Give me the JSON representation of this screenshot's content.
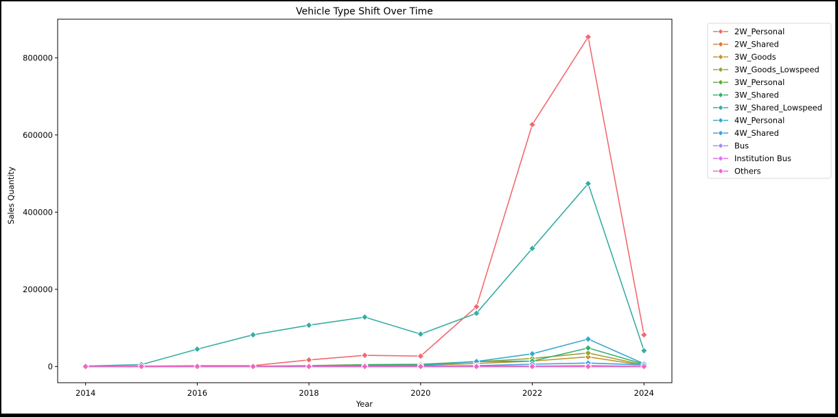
{
  "chart_data": {
    "type": "line",
    "title": "Vehicle Type Shift Over Time",
    "xlabel": "Year",
    "ylabel": "Sales Quantity",
    "xlim": [
      2013.5,
      2024.5
    ],
    "ylim": [
      -42000,
      900000
    ],
    "x_ticks": [
      "2014",
      "2016",
      "2018",
      "2020",
      "2022",
      "2024"
    ],
    "y_ticks": [
      "0",
      "200000",
      "400000",
      "600000",
      "800000"
    ],
    "grid": false,
    "legend_position": "outside-upper-right",
    "x": [
      2014,
      2015,
      2016,
      2017,
      2018,
      2019,
      2020,
      2021,
      2022,
      2023,
      2024
    ],
    "series": [
      {
        "name": "2W_Personal",
        "color": "#f2686e",
        "values": [
          100,
          1000,
          2000,
          2500,
          17000,
          29000,
          27000,
          155000,
          627000,
          854000,
          82000
        ]
      },
      {
        "name": "2W_Shared",
        "color": "#de7932",
        "values": [
          0,
          0,
          0,
          0,
          0,
          0,
          0,
          0,
          100,
          200,
          0
        ]
      },
      {
        "name": "3W_Goods",
        "color": "#c0952f",
        "values": [
          0,
          0,
          0,
          500,
          1500,
          3000,
          3000,
          8000,
          14000,
          25000,
          3000
        ]
      },
      {
        "name": "3W_Goods_Lowspeed",
        "color": "#9da231",
        "values": [
          0,
          0,
          0,
          700,
          2500,
          5000,
          6000,
          12000,
          21000,
          35000,
          4000
        ]
      },
      {
        "name": "3W_Personal",
        "color": "#5eae31",
        "values": [
          0,
          0,
          0,
          0,
          100,
          200,
          200,
          500,
          1000,
          2000,
          300
        ]
      },
      {
        "name": "3W_Shared",
        "color": "#33b071",
        "values": [
          0,
          0,
          0,
          500,
          1500,
          4000,
          5000,
          13000,
          14000,
          48000,
          6000
        ]
      },
      {
        "name": "3W_Shared_Lowspeed",
        "color": "#36ada4",
        "values": [
          1000,
          5000,
          45000,
          82000,
          107000,
          128000,
          84000,
          138000,
          306000,
          474000,
          41000
        ]
      },
      {
        "name": "4W_Personal",
        "color": "#38a7d0",
        "values": [
          0,
          0,
          500,
          500,
          1000,
          2000,
          2000,
          13000,
          33000,
          71000,
          7000
        ]
      },
      {
        "name": "4W_Shared",
        "color": "#3d9ee8",
        "values": [
          0,
          0,
          0,
          0,
          0,
          500,
          1000,
          2000,
          6000,
          9000,
          4000
        ]
      },
      {
        "name": "Bus",
        "color": "#a48cf4",
        "values": [
          0,
          0,
          0,
          0,
          0,
          0,
          0,
          100,
          500,
          1000,
          200
        ]
      },
      {
        "name": "Institution Bus",
        "color": "#e26ef4",
        "values": [
          0,
          0,
          0,
          0,
          0,
          0,
          0,
          0,
          0,
          100,
          0
        ]
      },
      {
        "name": "Others",
        "color": "#f462c5",
        "values": [
          0,
          0,
          0,
          0,
          0,
          0,
          0,
          0,
          0,
          0,
          0
        ]
      }
    ]
  }
}
